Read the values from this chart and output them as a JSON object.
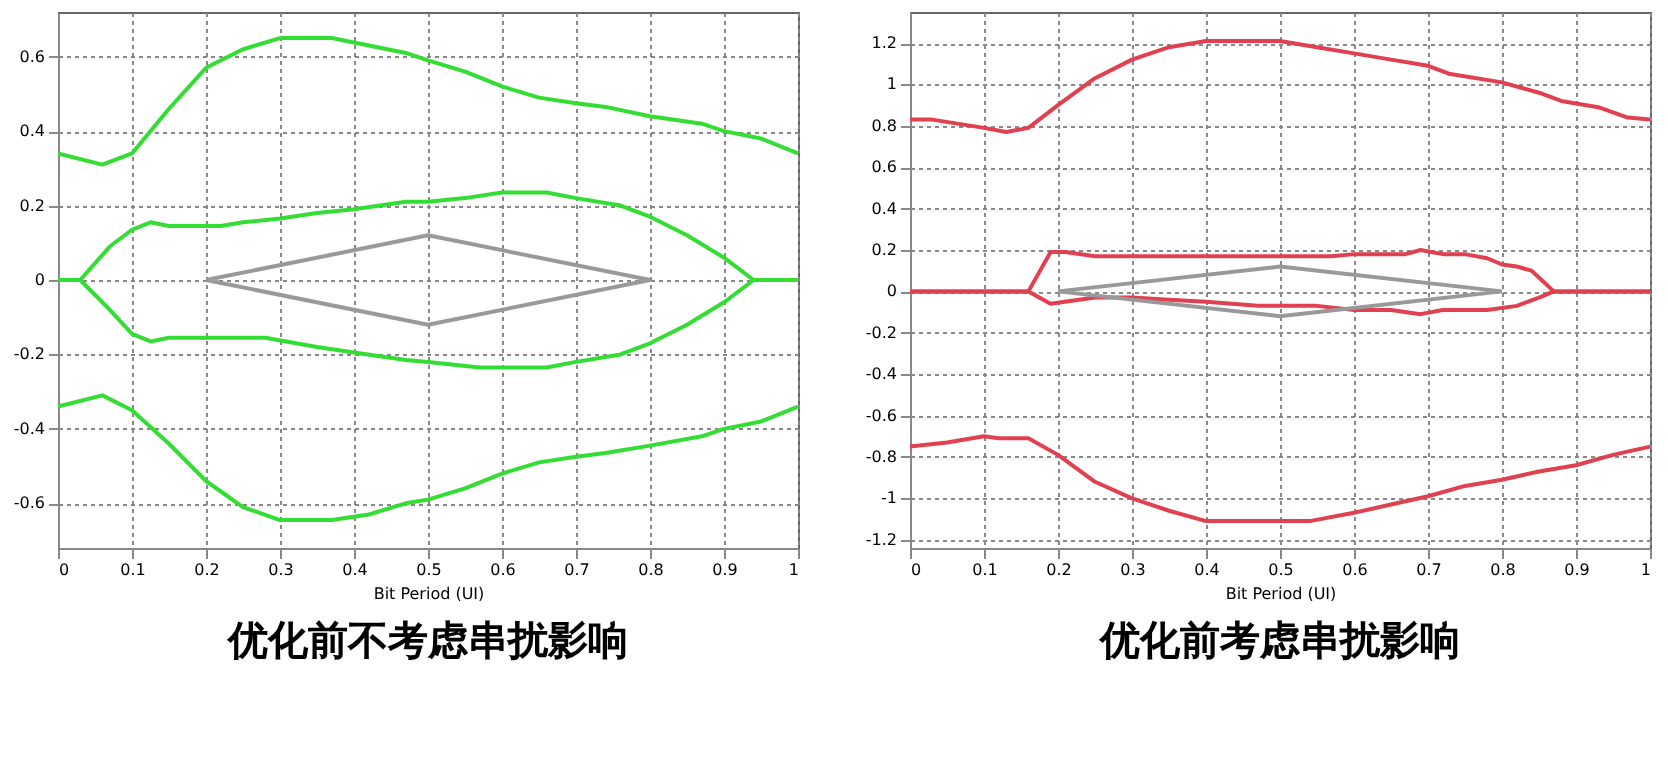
{
  "chart_data": [
    {
      "type": "line",
      "title": "优化前不考虑串扰影响",
      "xlabel": "Bit Period (UI)",
      "xlim": [
        0,
        1
      ],
      "xticks": [
        0,
        0.1,
        0.2,
        0.3,
        0.4,
        0.5,
        0.6,
        0.7,
        0.8,
        0.9,
        1
      ],
      "ylim": [
        -0.72,
        0.72
      ],
      "yticks": [
        -0.6,
        -0.4,
        -0.2,
        0,
        0.2,
        0.4,
        0.6
      ],
      "grid": true,
      "line_style": "solid",
      "series": [
        {
          "color": "#33dd33",
          "x": [
            0,
            0.06,
            0.1,
            0.15,
            0.2,
            0.25,
            0.3,
            0.37,
            0.42,
            0.47,
            0.5,
            0.55,
            0.6,
            0.65,
            0.7,
            0.74,
            0.8,
            0.87,
            0.9,
            0.95,
            1
          ],
          "values": [
            0.34,
            0.31,
            0.34,
            0.46,
            0.57,
            0.62,
            0.65,
            0.65,
            0.63,
            0.61,
            0.59,
            0.56,
            0.52,
            0.49,
            0.475,
            0.465,
            0.44,
            0.42,
            0.4,
            0.38,
            0.34
          ]
        },
        {
          "color": "#33dd33",
          "x": [
            0,
            0.03,
            0.07,
            0.1,
            0.125,
            0.15,
            0.22,
            0.25,
            0.3,
            0.35,
            0.4,
            0.47,
            0.5,
            0.55,
            0.6,
            0.66,
            0.7,
            0.76,
            0.8,
            0.85,
            0.9,
            0.94,
            1
          ],
          "values": [
            0,
            0,
            0.09,
            0.135,
            0.155,
            0.145,
            0.145,
            0.155,
            0.165,
            0.18,
            0.19,
            0.21,
            0.21,
            0.22,
            0.235,
            0.235,
            0.22,
            0.2,
            0.17,
            0.12,
            0.06,
            0,
            0
          ]
        },
        {
          "color": "#33dd33",
          "x": [
            0,
            0.03,
            0.07,
            0.1,
            0.125,
            0.15,
            0.28,
            0.35,
            0.4,
            0.47,
            0.5,
            0.57,
            0.66,
            0.7,
            0.76,
            0.8,
            0.85,
            0.9,
            0.94,
            1
          ],
          "values": [
            0,
            0,
            -0.08,
            -0.145,
            -0.165,
            -0.155,
            -0.155,
            -0.18,
            -0.195,
            -0.215,
            -0.22,
            -0.235,
            -0.235,
            -0.22,
            -0.2,
            -0.17,
            -0.12,
            -0.06,
            0,
            0
          ]
        },
        {
          "color": "#33dd33",
          "x": [
            0,
            0.06,
            0.1,
            0.15,
            0.2,
            0.25,
            0.3,
            0.37,
            0.42,
            0.47,
            0.5,
            0.55,
            0.6,
            0.65,
            0.7,
            0.74,
            0.8,
            0.87,
            0.9,
            0.95,
            1
          ],
          "values": [
            -0.34,
            -0.31,
            -0.35,
            -0.44,
            -0.54,
            -0.61,
            -0.645,
            -0.645,
            -0.63,
            -0.6,
            -0.59,
            -0.56,
            -0.52,
            -0.49,
            -0.475,
            -0.465,
            -0.445,
            -0.42,
            -0.4,
            -0.38,
            -0.34
          ]
        },
        {
          "color": "#999999",
          "x": [
            0.2,
            0.5,
            0.8
          ],
          "values": [
            0,
            0.12,
            0
          ]
        },
        {
          "color": "#999999",
          "x": [
            0.2,
            0.5,
            0.8
          ],
          "values": [
            0,
            -0.12,
            0
          ]
        }
      ]
    },
    {
      "type": "line",
      "title": "优化前考虑串扰影响",
      "xlabel": "Bit Period (UI)",
      "xlim": [
        0,
        1
      ],
      "xticks": [
        0,
        0.1,
        0.2,
        0.3,
        0.4,
        0.5,
        0.6,
        0.7,
        0.8,
        0.9,
        1
      ],
      "ylim": [
        -1.24,
        1.35
      ],
      "yticks": [
        -1.2,
        -1,
        -0.8,
        -0.6,
        -0.4,
        -0.2,
        0,
        0.2,
        0.4,
        0.6,
        0.8,
        1,
        1.2
      ],
      "grid": true,
      "line_style": "solid",
      "series": [
        {
          "color": "#e04050",
          "x": [
            0,
            0.03,
            0.1,
            0.13,
            0.16,
            0.2,
            0.25,
            0.3,
            0.35,
            0.4,
            0.5,
            0.55,
            0.6,
            0.65,
            0.7,
            0.73,
            0.8,
            0.85,
            0.88,
            0.93,
            0.97,
            1
          ],
          "values": [
            0.83,
            0.83,
            0.79,
            0.77,
            0.79,
            0.9,
            1.03,
            1.12,
            1.18,
            1.21,
            1.21,
            1.18,
            1.15,
            1.12,
            1.09,
            1.05,
            1.01,
            0.96,
            0.92,
            0.89,
            0.84,
            0.83
          ]
        },
        {
          "color": "#e04050",
          "x": [
            0,
            0.16,
            0.19,
            0.21,
            0.25,
            0.57,
            0.6,
            0.67,
            0.69,
            0.72,
            0.75,
            0.78,
            0.8,
            0.82,
            0.84,
            0.87,
            1
          ],
          "values": [
            0,
            0,
            0.19,
            0.19,
            0.17,
            0.17,
            0.18,
            0.18,
            0.2,
            0.18,
            0.18,
            0.16,
            0.13,
            0.12,
            0.1,
            0,
            0
          ]
        },
        {
          "color": "#e04050",
          "x": [
            0,
            0.16,
            0.19,
            0.25,
            0.3,
            0.35,
            0.4,
            0.47,
            0.55,
            0.6,
            0.65,
            0.69,
            0.72,
            0.78,
            0.82,
            0.85,
            0.87,
            1
          ],
          "values": [
            0,
            0,
            -0.06,
            -0.03,
            -0.03,
            -0.04,
            -0.05,
            -0.07,
            -0.07,
            -0.09,
            -0.09,
            -0.11,
            -0.09,
            -0.09,
            -0.07,
            -0.03,
            0,
            0
          ]
        },
        {
          "color": "#e04050",
          "x": [
            0,
            0.05,
            0.1,
            0.12,
            0.16,
            0.2,
            0.25,
            0.3,
            0.35,
            0.4,
            0.5,
            0.54,
            0.6,
            0.65,
            0.7,
            0.75,
            0.8,
            0.85,
            0.9,
            0.95,
            1
          ],
          "values": [
            -0.75,
            -0.73,
            -0.7,
            -0.71,
            -0.71,
            -0.79,
            -0.92,
            -1,
            -1.06,
            -1.11,
            -1.11,
            -1.11,
            -1.07,
            -1.03,
            -0.99,
            -0.94,
            -0.91,
            -0.87,
            -0.84,
            -0.79,
            -0.75
          ]
        },
        {
          "color": "#999999",
          "x": [
            0.2,
            0.5,
            0.8
          ],
          "values": [
            0,
            0.12,
            0
          ]
        },
        {
          "color": "#999999",
          "x": [
            0.2,
            0.5,
            0.8
          ],
          "values": [
            0,
            -0.12,
            0
          ]
        }
      ]
    }
  ]
}
